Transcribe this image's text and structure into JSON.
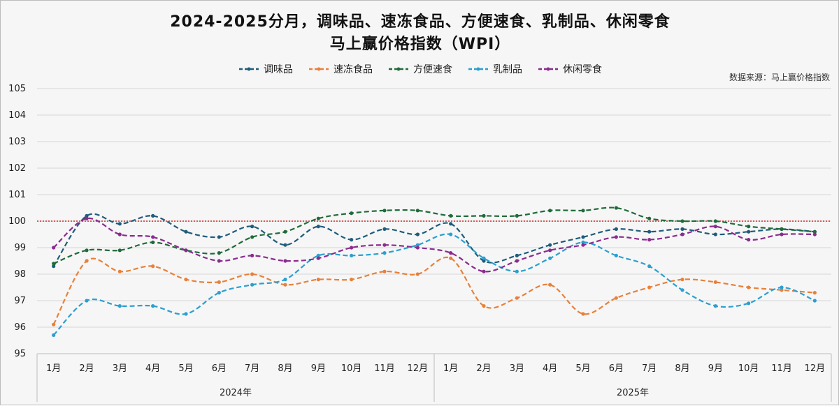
{
  "chart_data": {
    "type": "line",
    "title_line1": "2024-2025分月，调味品、速冻食品、方便速食、乳制品、休闲零食",
    "title_line2": "马上赢价格指数（WPI）",
    "source_note": "数据来源：马上赢价格指数",
    "ylim": [
      95,
      105
    ],
    "yticks": [
      "95",
      "96",
      "97",
      "98",
      "99",
      "100",
      "101",
      "102",
      "103",
      "104",
      "105"
    ],
    "reference_line": 100,
    "reference_color": "#d92020",
    "months": [
      "1月",
      "2月",
      "3月",
      "4月",
      "5月",
      "6月",
      "7月",
      "8月",
      "9月",
      "10月",
      "11月",
      "12月",
      "1月",
      "2月",
      "3月",
      "4月",
      "5月",
      "6月",
      "7月",
      "8月",
      "9月",
      "10月",
      "11月",
      "12月"
    ],
    "year_labels": [
      "2024年",
      "2025年"
    ],
    "series": [
      {
        "name": "调味品",
        "color": "#1f5c7a",
        "values": [
          98.3,
          100.2,
          99.9,
          100.2,
          99.6,
          99.4,
          99.8,
          99.1,
          99.8,
          99.3,
          99.7,
          99.5,
          99.9,
          98.5,
          98.7,
          99.1,
          99.4,
          99.7,
          99.6,
          99.7,
          99.5,
          99.6,
          99.7,
          99.6
        ]
      },
      {
        "name": "速冻食品",
        "color": "#e8803a",
        "values": [
          96.1,
          98.5,
          98.1,
          98.3,
          97.8,
          97.7,
          98.0,
          97.6,
          97.8,
          97.8,
          98.1,
          98.0,
          98.6,
          96.8,
          97.1,
          97.6,
          96.5,
          97.1,
          97.5,
          97.8,
          97.7,
          97.5,
          97.4,
          97.3
        ]
      },
      {
        "name": "方便速食",
        "color": "#1f6b3a",
        "values": [
          98.4,
          98.9,
          98.9,
          99.2,
          98.9,
          98.8,
          99.4,
          99.6,
          100.1,
          100.3,
          100.4,
          100.4,
          100.2,
          100.2,
          100.2,
          100.4,
          100.4,
          100.5,
          100.1,
          100.0,
          100.0,
          99.8,
          99.7,
          99.6
        ]
      },
      {
        "name": "乳制品",
        "color": "#2a9fd0",
        "values": [
          95.7,
          97.0,
          96.8,
          96.8,
          96.5,
          97.3,
          97.6,
          97.8,
          98.7,
          98.7,
          98.8,
          99.1,
          99.5,
          98.6,
          98.1,
          98.6,
          99.2,
          98.7,
          98.3,
          97.4,
          96.8,
          96.9,
          97.5,
          97.0
        ]
      },
      {
        "name": "休闲零食",
        "color": "#8a2b8e",
        "values": [
          99.0,
          100.1,
          99.5,
          99.4,
          98.9,
          98.5,
          98.7,
          98.5,
          98.6,
          99.0,
          99.1,
          99.0,
          98.8,
          98.1,
          98.5,
          98.9,
          99.1,
          99.4,
          99.3,
          99.5,
          99.8,
          99.3,
          99.5,
          99.5
        ]
      }
    ]
  }
}
